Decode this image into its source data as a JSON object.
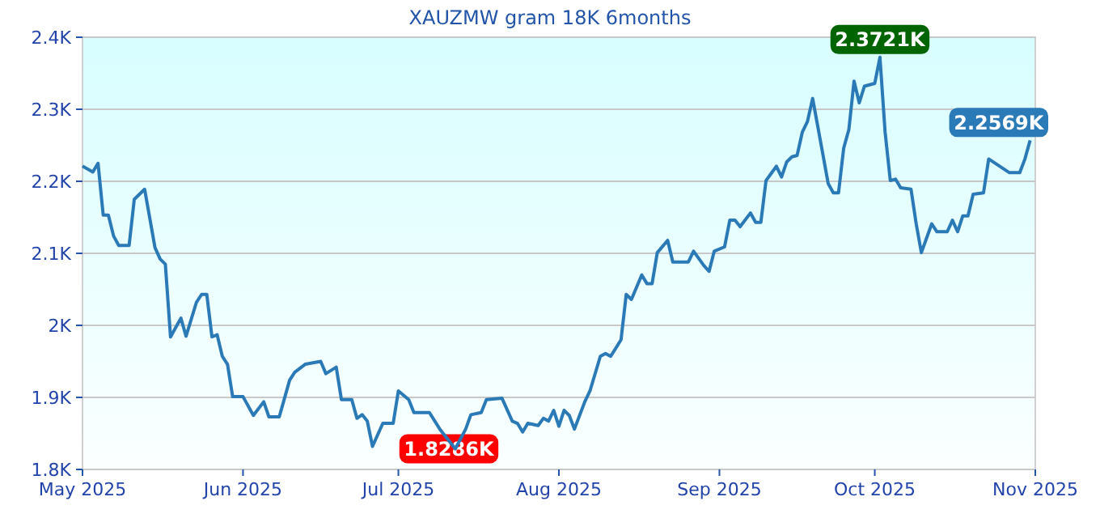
{
  "chart_data": {
    "type": "line",
    "title": "XAUZMW gram 18K 6months",
    "x": [
      "2025-05-01",
      "2025-05-03",
      "2025-05-04",
      "2025-05-05",
      "2025-05-06",
      "2025-05-07",
      "2025-05-08",
      "2025-05-10",
      "2025-05-11",
      "2025-05-12",
      "2025-05-13",
      "2025-05-15",
      "2025-05-16",
      "2025-05-17",
      "2025-05-18",
      "2025-05-20",
      "2025-05-21",
      "2025-05-23",
      "2025-05-24",
      "2025-05-25",
      "2025-05-26",
      "2025-05-27",
      "2025-05-28",
      "2025-05-29",
      "2025-05-30",
      "2025-06-01",
      "2025-06-03",
      "2025-06-05",
      "2025-06-06",
      "2025-06-08",
      "2025-06-10",
      "2025-06-11",
      "2025-06-13",
      "2025-06-16",
      "2025-06-17",
      "2025-06-19",
      "2025-06-20",
      "2025-06-22",
      "2025-06-23",
      "2025-06-24",
      "2025-06-25",
      "2025-06-26",
      "2025-06-28",
      "2025-06-30",
      "2025-07-01",
      "2025-07-03",
      "2025-07-04",
      "2025-07-07",
      "2025-07-09",
      "2025-07-12",
      "2025-07-14",
      "2025-07-15",
      "2025-07-17",
      "2025-07-18",
      "2025-07-21",
      "2025-07-23",
      "2025-07-24",
      "2025-07-25",
      "2025-07-26",
      "2025-07-28",
      "2025-07-29",
      "2025-07-30",
      "2025-07-31",
      "2025-08-01",
      "2025-08-02",
      "2025-08-03",
      "2025-08-04",
      "2025-08-06",
      "2025-08-07",
      "2025-08-09",
      "2025-08-10",
      "2025-08-11",
      "2025-08-13",
      "2025-08-14",
      "2025-08-15",
      "2025-08-17",
      "2025-08-18",
      "2025-08-19",
      "2025-08-20",
      "2025-08-22",
      "2025-08-23",
      "2025-08-26",
      "2025-08-27",
      "2025-08-29",
      "2025-08-30",
      "2025-08-31",
      "2025-09-02",
      "2025-09-03",
      "2025-09-04",
      "2025-09-05",
      "2025-09-07",
      "2025-09-08",
      "2025-09-09",
      "2025-09-10",
      "2025-09-11",
      "2025-09-12",
      "2025-09-13",
      "2025-09-14",
      "2025-09-15",
      "2025-09-16",
      "2025-09-17",
      "2025-09-18",
      "2025-09-19",
      "2025-09-20",
      "2025-09-22",
      "2025-09-23",
      "2025-09-24",
      "2025-09-25",
      "2025-09-26",
      "2025-09-27",
      "2025-09-28",
      "2025-09-29",
      "2025-10-01",
      "2025-10-02",
      "2025-10-03",
      "2025-10-04",
      "2025-10-05",
      "2025-10-06",
      "2025-10-08",
      "2025-10-09",
      "2025-10-10",
      "2025-10-12",
      "2025-10-13",
      "2025-10-15",
      "2025-10-16",
      "2025-10-17",
      "2025-10-18",
      "2025-10-19",
      "2025-10-20",
      "2025-10-22",
      "2025-10-23",
      "2025-10-27",
      "2025-10-29",
      "2025-10-30",
      "2025-10-31"
    ],
    "series": [
      {
        "color": "#2a7ab8",
        "values": [
          2221,
          2213,
          2225,
          2153,
          2153,
          2124,
          2111,
          2111,
          2175,
          2182,
          2189,
          2108,
          2092,
          2085,
          1984,
          2010,
          1985,
          2032,
          2043,
          2043,
          1984,
          1987,
          1957,
          1946,
          1901,
          1901,
          1875,
          1894,
          1873,
          1873,
          1924,
          1935,
          1946,
          1950,
          1933,
          1942,
          1897,
          1897,
          1871,
          1876,
          1867,
          1832,
          1864,
          1864,
          1909,
          1897,
          1879,
          1879,
          1856,
          1828.6,
          1856,
          1876,
          1879,
          1897,
          1899,
          1867,
          1864,
          1852,
          1864,
          1861,
          1871,
          1867,
          1882,
          1860,
          1882,
          1875,
          1856,
          1894,
          1909,
          1957,
          1961,
          1957,
          1980,
          2043,
          2036,
          2070,
          2058,
          2058,
          2101,
          2118,
          2088,
          2088,
          2103,
          2083,
          2075,
          2103,
          2109,
          2146,
          2146,
          2137,
          2156,
          2143,
          2143,
          2201,
          2211,
          2221,
          2206,
          2227,
          2234,
          2236,
          2268,
          2283,
          2315,
          2276,
          2197,
          2184,
          2184,
          2246,
          2272,
          2339,
          2309,
          2332,
          2336,
          2372.1,
          2268,
          2201,
          2203,
          2191,
          2189,
          2141,
          2101,
          2141,
          2130,
          2130,
          2146,
          2130,
          2152,
          2152,
          2182,
          2184,
          2231,
          2212,
          2212,
          2231,
          2256.9
        ]
      }
    ],
    "xlim": [
      "2025-05-01",
      "2025-11-01"
    ],
    "xticks": [
      {
        "value": "2025-05-01",
        "label": "May 2025"
      },
      {
        "value": "2025-06-01",
        "label": "Jun 2025"
      },
      {
        "value": "2025-07-01",
        "label": "Jul 2025"
      },
      {
        "value": "2025-08-01",
        "label": "Aug 2025"
      },
      {
        "value": "2025-09-01",
        "label": "Sep 2025"
      },
      {
        "value": "2025-10-01",
        "label": "Oct 2025"
      },
      {
        "value": "2025-11-01",
        "label": "Nov 2025"
      }
    ],
    "ylim": [
      1800,
      2400
    ],
    "yticks": [
      {
        "value": 1800,
        "label": "1.8K"
      },
      {
        "value": 1900,
        "label": "1.9K"
      },
      {
        "value": 2000,
        "label": "2K"
      },
      {
        "value": 2100,
        "label": "2.1K"
      },
      {
        "value": 2200,
        "label": "2.2K"
      },
      {
        "value": 2300,
        "label": "2.3K"
      },
      {
        "value": 2400,
        "label": "2.4K"
      }
    ],
    "grid": "y",
    "marker": "none",
    "line_style": "solid",
    "annotations": [
      {
        "text": "2.3721K",
        "x": "2025-10-02",
        "y": 2372.1
      },
      {
        "text": "1.8286K",
        "x": "2025-07-12",
        "y": 1828.6
      },
      {
        "text": "2.2569K",
        "x": "2025-10-31",
        "y": 2256.9
      }
    ]
  }
}
